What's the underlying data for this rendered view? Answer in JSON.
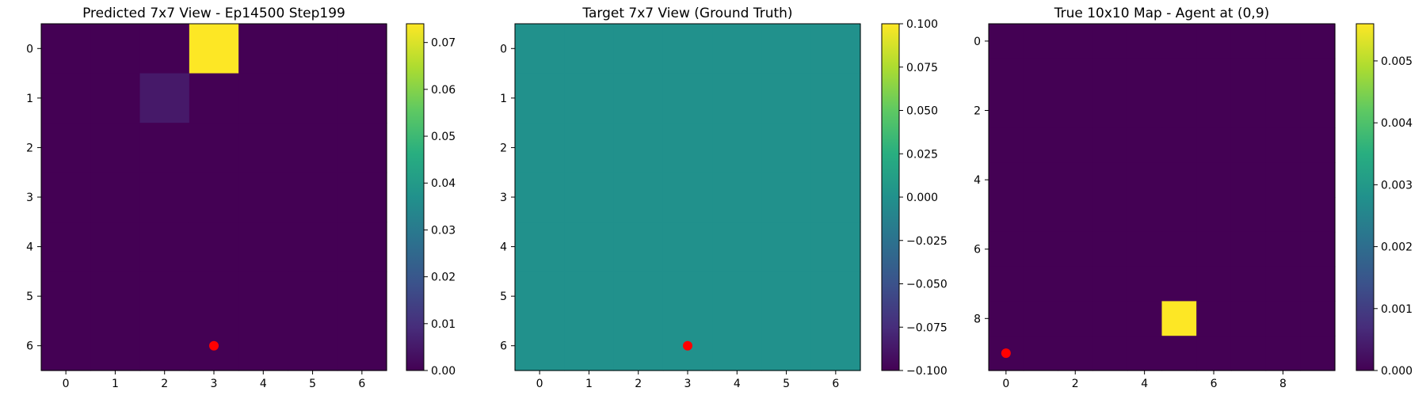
{
  "chart_data": [
    {
      "type": "heatmap",
      "title": "Predicted 7x7 View - Ep14500 Step199",
      "rows": 7,
      "cols": 7,
      "x_ticks": [
        0,
        1,
        2,
        3,
        4,
        5,
        6
      ],
      "y_ticks": [
        0,
        1,
        2,
        3,
        4,
        5,
        6
      ],
      "values": [
        [
          0,
          0,
          0,
          0.074,
          0,
          0,
          0
        ],
        [
          0,
          0,
          0.005,
          0,
          0,
          0,
          0
        ],
        [
          0,
          0,
          0,
          0,
          0,
          0,
          0
        ],
        [
          0,
          0,
          0,
          0,
          0,
          0,
          0
        ],
        [
          0,
          0,
          0,
          0,
          0,
          0,
          0
        ],
        [
          0,
          0,
          0,
          0,
          0,
          0,
          0
        ],
        [
          0,
          0,
          0,
          0,
          0,
          0,
          0
        ]
      ],
      "vmin": 0.0,
      "vmax": 0.074,
      "colormap": "viridis",
      "colorbar_ticks": [
        "0.00",
        "0.01",
        "0.02",
        "0.03",
        "0.04",
        "0.05",
        "0.06",
        "0.07"
      ],
      "colorbar_tick_values": [
        0,
        0.01,
        0.02,
        0.03,
        0.04,
        0.05,
        0.06,
        0.07
      ],
      "marker": {
        "x": 3,
        "y": 6,
        "color": "#ff0000"
      }
    },
    {
      "type": "heatmap",
      "title": "Target 7x7 View (Ground Truth)",
      "rows": 7,
      "cols": 7,
      "x_ticks": [
        0,
        1,
        2,
        3,
        4,
        5,
        6
      ],
      "y_ticks": [
        0,
        1,
        2,
        3,
        4,
        5,
        6
      ],
      "values": [
        [
          0,
          0,
          0,
          0,
          0,
          0,
          0
        ],
        [
          0,
          0,
          0,
          0,
          0,
          0,
          0
        ],
        [
          0,
          0,
          0,
          0,
          0,
          0,
          0
        ],
        [
          0,
          0,
          0,
          0,
          0,
          0,
          0
        ],
        [
          0,
          0,
          0,
          0,
          0,
          0,
          0
        ],
        [
          0,
          0,
          0,
          0,
          0,
          0,
          0
        ],
        [
          0,
          0,
          0,
          0,
          0,
          0,
          0
        ]
      ],
      "vmin": -0.1,
      "vmax": 0.1,
      "colormap": "viridis",
      "colorbar_ticks": [
        "0.100",
        "0.075",
        "0.050",
        "0.025",
        "0.000",
        "−0.025",
        "−0.050",
        "−0.075",
        "−0.100"
      ],
      "colorbar_tick_values": [
        0.1,
        0.075,
        0.05,
        0.025,
        0,
        -0.025,
        -0.05,
        -0.075,
        -0.1
      ],
      "marker": {
        "x": 3,
        "y": 6,
        "color": "#ff0000"
      }
    },
    {
      "type": "heatmap",
      "title": "True 10x10 Map - Agent at (0,9)",
      "rows": 10,
      "cols": 10,
      "x_ticks": [
        0,
        2,
        4,
        6,
        8
      ],
      "y_ticks": [
        0,
        2,
        4,
        6,
        8
      ],
      "values": [
        [
          0,
          0,
          0,
          0,
          0,
          0,
          0,
          0,
          0,
          0
        ],
        [
          0,
          0,
          0,
          0,
          0,
          0,
          0,
          0,
          0,
          0
        ],
        [
          0,
          0,
          0,
          0,
          0,
          0,
          0,
          0,
          0,
          0
        ],
        [
          0,
          0,
          0,
          0,
          0,
          0,
          0,
          0,
          0,
          0
        ],
        [
          0,
          0,
          0,
          0,
          0,
          0,
          0,
          0,
          0,
          0
        ],
        [
          0,
          0,
          0,
          0,
          0,
          0,
          0,
          0,
          0,
          0
        ],
        [
          0,
          0,
          0,
          0,
          0,
          0,
          0,
          0,
          0,
          0
        ],
        [
          0,
          0,
          0,
          0,
          0,
          0,
          0,
          0,
          0,
          0
        ],
        [
          0,
          0,
          0,
          0,
          0,
          0.0056,
          0,
          0,
          0,
          0
        ],
        [
          0,
          0,
          0,
          0,
          0,
          0,
          0,
          0,
          0,
          0
        ]
      ],
      "vmin": 0.0,
      "vmax": 0.0056,
      "colormap": "viridis",
      "colorbar_ticks": [
        "0.000",
        "0.001",
        "0.002",
        "0.003",
        "0.004",
        "0.005"
      ],
      "colorbar_tick_values": [
        0,
        0.001,
        0.002,
        0.003,
        0.004,
        0.005
      ],
      "marker": {
        "x": 0,
        "y": 9,
        "color": "#ff0000"
      }
    }
  ]
}
